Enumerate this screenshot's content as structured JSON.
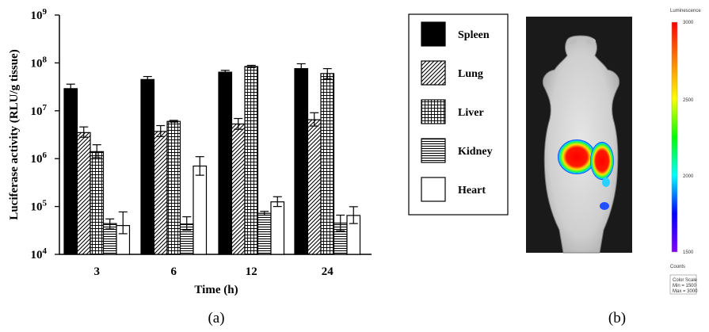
{
  "chart_data": {
    "type": "bar",
    "scale": "log",
    "ylabel": "Luciferase activity (RLU/g tissue)",
    "xlabel": "Time (h)",
    "ylim": [
      10000,
      1000000000
    ],
    "y_ticks": [
      {
        "value": 10000,
        "base": "10",
        "exp": "4"
      },
      {
        "value": 100000,
        "base": "10",
        "exp": "5"
      },
      {
        "value": 1000000,
        "base": "10",
        "exp": "6"
      },
      {
        "value": 10000000,
        "base": "10",
        "exp": "7"
      },
      {
        "value": 100000000,
        "base": "10",
        "exp": "8"
      },
      {
        "value": 1000000000,
        "base": "10",
        "exp": "9"
      }
    ],
    "categories": [
      "3",
      "6",
      "12",
      "24"
    ],
    "series": [
      {
        "name": "Spleen",
        "pattern": "solid",
        "values": [
          29000000,
          45000000,
          64000000,
          76000000
        ],
        "err_low": [
          25000000,
          40000000,
          58000000,
          62000000
        ],
        "err_high": [
          36000000,
          52000000,
          70000000,
          96000000
        ]
      },
      {
        "name": "Lung",
        "pattern": "diagonal",
        "values": [
          3500000,
          3700000,
          5300000,
          6500000
        ],
        "err_low": [
          2800000,
          2900000,
          4100000,
          4800000
        ],
        "err_high": [
          4600000,
          4900000,
          6900000,
          9100000
        ]
      },
      {
        "name": "Liver",
        "pattern": "grid",
        "values": [
          1400000,
          6000000,
          84000000,
          60000000
        ],
        "err_low": [
          1050000,
          5800000,
          80000000,
          47000000
        ],
        "err_high": [
          1950000,
          6300000,
          89000000,
          76000000
        ]
      },
      {
        "name": "Kidney",
        "pattern": "horizontal",
        "values": [
          44000,
          43000,
          72000,
          45000
        ],
        "err_low": [
          34000,
          32000,
          66000,
          31000
        ],
        "err_high": [
          55000,
          61000,
          79000,
          66000
        ]
      },
      {
        "name": "Heart",
        "pattern": "empty",
        "values": [
          40000,
          700000,
          125000,
          65000
        ],
        "err_low": [
          27000,
          450000,
          100000,
          44000
        ],
        "err_high": [
          77000,
          1100000,
          160000,
          99000
        ]
      }
    ]
  },
  "panels": {
    "a_label": "(a)",
    "b_label": "(b)"
  },
  "color_bar": {
    "title": "Luminescence",
    "ticks": [
      "3000",
      "2500",
      "2000",
      "1500"
    ],
    "units": "Counts",
    "box_lines": [
      "Color Scale",
      "Min = 1500",
      "Max = 3000"
    ],
    "gradient": [
      "#ff0000",
      "#ff8000",
      "#ffff00",
      "#00ff00",
      "#00ffff",
      "#0000ff",
      "#8000ff"
    ]
  }
}
